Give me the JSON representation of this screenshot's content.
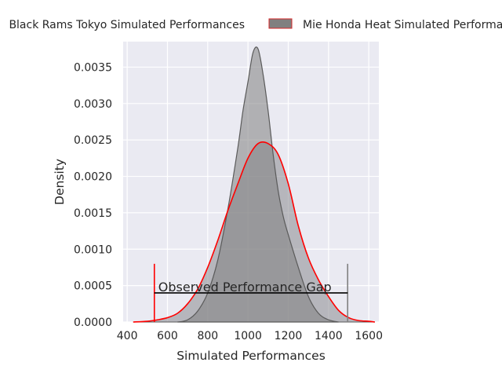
{
  "chart_data": {
    "type": "area",
    "xlabel": "Simulated Performances",
    "ylabel": "Density",
    "xlim": [
      380,
      1650
    ],
    "ylim": [
      0,
      0.00385
    ],
    "xticks": [
      400,
      600,
      800,
      1000,
      1200,
      1400,
      1600
    ],
    "xtick_labels": [
      "400",
      "600",
      "800",
      "1000",
      "1200",
      "1400",
      "1600"
    ],
    "yticks": [
      0,
      0.0005,
      0.001,
      0.0015,
      0.002,
      0.0025,
      0.003,
      0.0035
    ],
    "ytick_labels": [
      "0.0000",
      "0.0005",
      "0.0010",
      "0.0015",
      "0.0020",
      "0.0025",
      "0.0030",
      "0.0035"
    ],
    "grid": true,
    "legend_placement": "top-center",
    "legend": [
      {
        "label": "Black Rams Tokyo Simulated Performances",
        "color": "#ff0000",
        "style": "line"
      },
      {
        "label": "Mie Honda Heat Simulated Performances",
        "color": "#808080",
        "style": "fill"
      }
    ],
    "series": [
      {
        "label": "Black Rams Tokyo Simulated Performances",
        "color": "#ff0000",
        "style": "line",
        "x": [
          430,
          500,
          550,
          600,
          650,
          700,
          750,
          800,
          850,
          900,
          950,
          1000,
          1050,
          1100,
          1150,
          1200,
          1250,
          1300,
          1350,
          1400,
          1450,
          1500,
          1550,
          1600,
          1630
        ],
        "y": [
          0.0,
          1e-05,
          3e-05,
          6e-05,
          0.00012,
          0.00025,
          0.00045,
          0.00075,
          0.00112,
          0.00153,
          0.0019,
          0.00225,
          0.00245,
          0.00245,
          0.0023,
          0.0019,
          0.00132,
          0.00088,
          0.00058,
          0.00035,
          0.00016,
          6e-05,
          2e-05,
          1e-05,
          0.0
        ]
      },
      {
        "label": "Mie Honda Heat Simulated Performances",
        "color": "#808080",
        "style": "fill",
        "x": [
          650,
          700,
          750,
          800,
          850,
          900,
          950,
          975,
          1000,
          1025,
          1050,
          1075,
          1100,
          1125,
          1150,
          1175,
          1200,
          1250,
          1300,
          1350,
          1400,
          1450
        ],
        "y": [
          0.0,
          3e-05,
          0.00015,
          0.0004,
          0.00085,
          0.00155,
          0.0024,
          0.0029,
          0.0033,
          0.0037,
          0.00375,
          0.0034,
          0.0029,
          0.0023,
          0.0018,
          0.00145,
          0.0012,
          0.00075,
          0.00035,
          0.00012,
          3e-05,
          0.0
        ]
      }
    ],
    "annotations": [
      {
        "text": "Observed Performance Gap",
        "x_start": 535,
        "x_end": 1495,
        "y": 0.0004,
        "marker_height": 0.0008,
        "start_color": "#ff0000",
        "end_color": "#808080",
        "line_color": "#000000"
      }
    ]
  }
}
